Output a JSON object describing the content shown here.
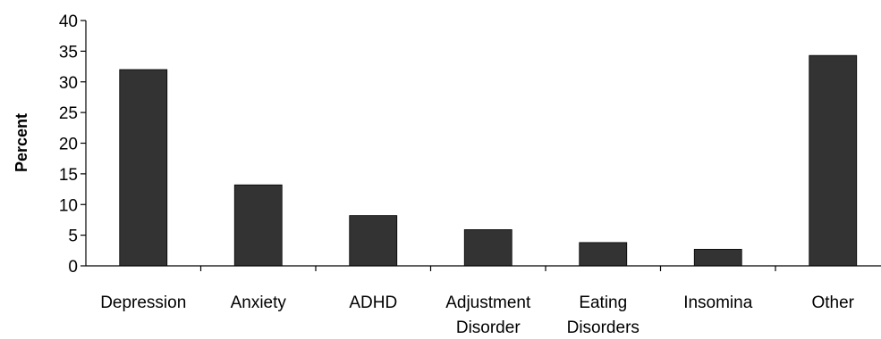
{
  "chart_data": {
    "type": "bar",
    "categories": [
      [
        "Depression"
      ],
      [
        "Anxiety"
      ],
      [
        "ADHD"
      ],
      [
        "Adjustment",
        "Disorder"
      ],
      [
        "Eating",
        "Disorders"
      ],
      [
        "Insomina"
      ],
      [
        "Other"
      ]
    ],
    "values": [
      32,
      13.2,
      8.2,
      5.9,
      3.8,
      2.7,
      34.3
    ],
    "title": "",
    "xlabel": "",
    "ylabel": "Percent",
    "ylim": [
      0,
      40
    ],
    "yticks": [
      0,
      5,
      10,
      15,
      20,
      25,
      30,
      35,
      40
    ],
    "bar_color": "#333333",
    "grid": false,
    "legend": "none"
  }
}
